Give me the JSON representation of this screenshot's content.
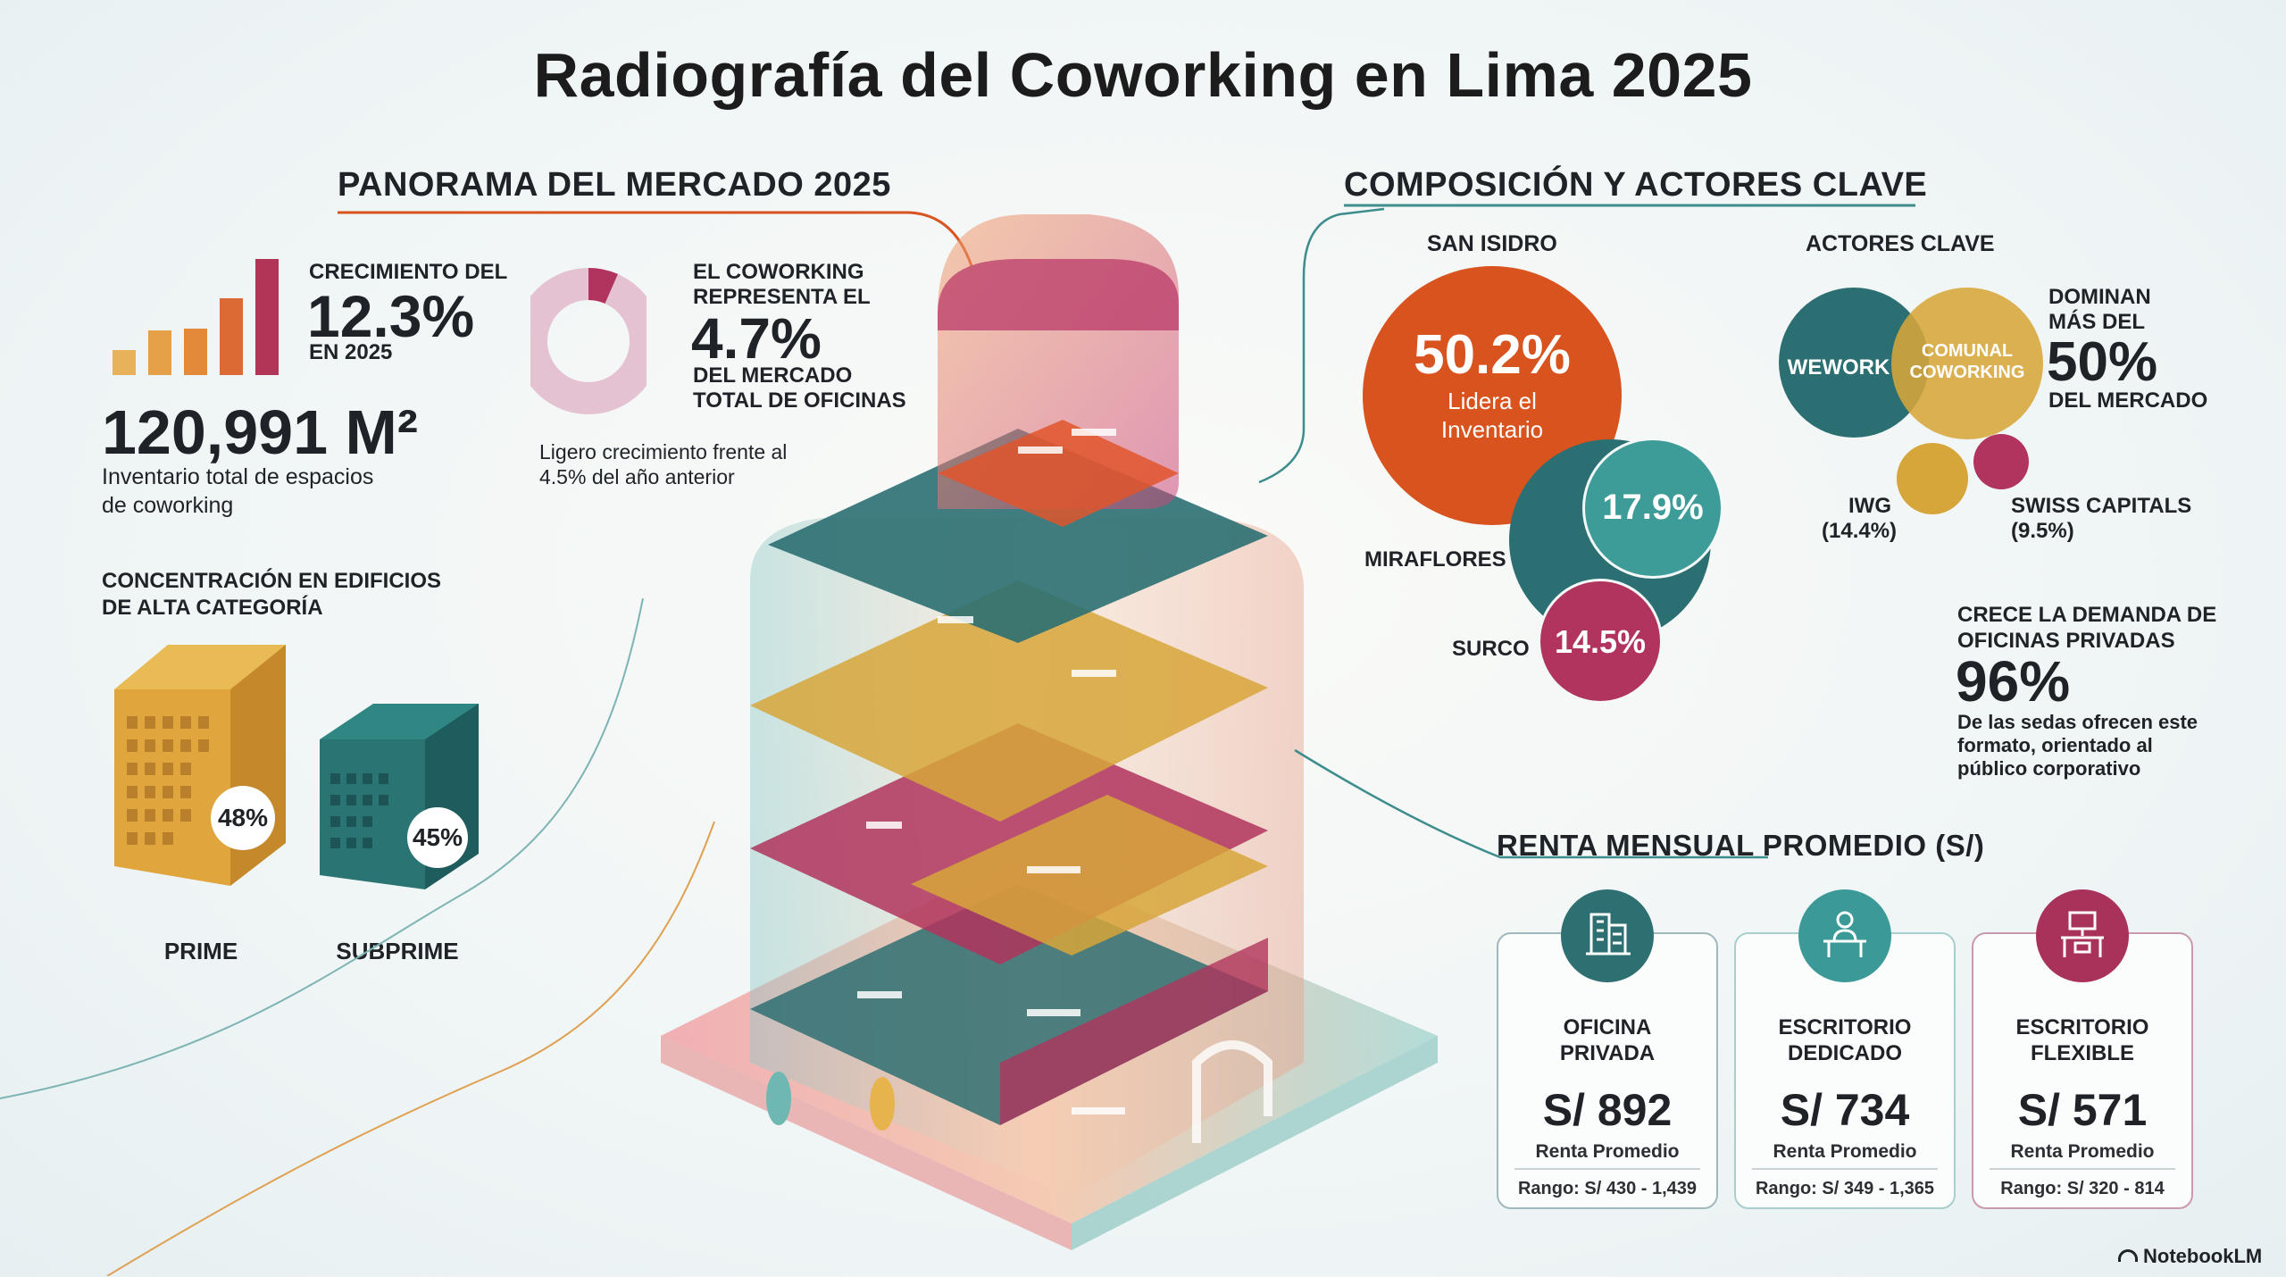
{
  "title": "Radiografía del Coworking en Lima 2025",
  "panorama": {
    "heading": "PANORAMA DEL MERCADO 2025",
    "growth": {
      "label_top": "CRECIMIENTO DEL",
      "value": "12.3%",
      "label_bottom": "EN 2025"
    },
    "inventory": {
      "value": "120,991 M²",
      "desc_line1": "Inventario total de espacios",
      "desc_line2": "de coworking"
    },
    "share": {
      "label_top1": "EL COWORKING",
      "label_top2": "REPRESENTA EL",
      "value": "4.7%",
      "label_bottom1": "DEL MERCADO",
      "label_bottom2": "TOTAL DE OFICINAS",
      "note_line1": "Ligero crecimiento frente al",
      "note_line2": "4.5% del año anterior",
      "fraction": 0.047
    },
    "concentration": {
      "line1": "CONCENTRACIÓN EN EDIFICIOS",
      "line2": "DE ALTA CATEGORÍA"
    },
    "prime": {
      "value": "48%",
      "label": "PRIME"
    },
    "subprime": {
      "value": "45%",
      "label": "SUBPRIME"
    }
  },
  "composicion": {
    "heading": "COMPOSICIÓN Y ACTORES CLAVE",
    "districts_label": "SAN ISIDRO",
    "san_isidro": {
      "value": "50.2%",
      "line1": "Lidera el",
      "line2": "Inventario"
    },
    "miraflores": {
      "value": "17.9%",
      "label": "MIRAFLORES"
    },
    "surco": {
      "value": "14.5%",
      "label": "SURCO"
    },
    "actors_label": "ACTORES CLAVE",
    "wework": "WEWORK",
    "comunal": {
      "line1": "COMUNAL",
      "line2": "COWORKING"
    },
    "dominan": {
      "line1": "DOMINAN",
      "line2": "MÁS DEL",
      "value": "50%",
      "line3": "DEL MERCADO"
    },
    "iwg": {
      "name": "IWG",
      "pct": "(14.4%)"
    },
    "swiss": {
      "name": "SWISS CAPITALS",
      "pct": "(9.5%)"
    },
    "demand": {
      "line1": "CRECE LA DEMANDA DE",
      "line2": "OFICINAS PRIVADAS",
      "value": "96%",
      "desc1": "De las sedas ofrecen este",
      "desc2": "formato, orientado al",
      "desc3": "público corporativo"
    }
  },
  "renta": {
    "heading": "RENTA MENSUAL PROMEDIO (S/)",
    "cards": [
      {
        "title1": "OFICINA",
        "title2": "PRIVADA",
        "price": "S/ 892",
        "sub": "Renta Promedio",
        "range": "Rango: S/ 430 - 1,439",
        "icon": "office-building-icon",
        "color": "#2e6f72"
      },
      {
        "title1": "ESCRITORIO",
        "title2": "DEDICADO",
        "price": "S/ 734",
        "sub": "Renta Promedio",
        "range": "Rango: S/ 349 - 1,365",
        "icon": "person-desk-icon",
        "color": "#3b9a97"
      },
      {
        "title1": "ESCRITORIO",
        "title2": "FLEXIBLE",
        "price": "S/ 571",
        "sub": "Renta Promedio",
        "range": "Rango: S/ 320 - 814",
        "icon": "flex-desk-icon",
        "color": "#a8325a"
      }
    ]
  },
  "brand": "NotebookLM",
  "colors": {
    "orange": "#d9531e",
    "teal": "#2b6f72",
    "teal_light": "#3e9c98",
    "magenta": "#b0345d",
    "gold": "#d7a63a",
    "pink_light": "#e7c3d2"
  }
}
